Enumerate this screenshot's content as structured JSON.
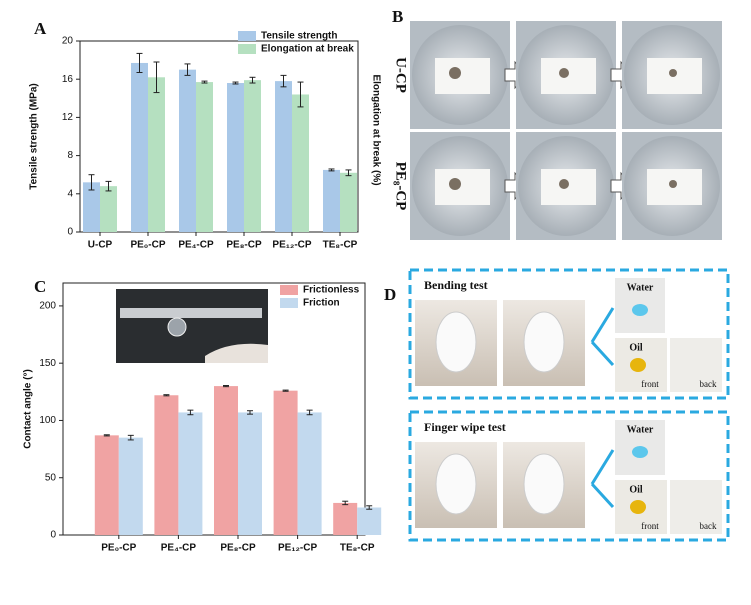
{
  "chart_data": [
    {
      "type": "bar",
      "panel_label": "A",
      "ylabel": "Tensile strength (MPa)",
      "y2label": "Elongation at break (%)",
      "categories": [
        "U-CP",
        "PE₀-CP",
        "PE₄-CP",
        "PE₈-CP",
        "PE₁₂-CP",
        "TE₈-CP"
      ],
      "series": [
        {
          "name": "Tensile strength",
          "color": "#a9c8e8",
          "values": [
            5.2,
            17.7,
            17.0,
            15.6,
            15.8,
            6.5
          ],
          "errors": [
            0.8,
            1.0,
            0.6,
            0.1,
            0.6,
            0.1
          ]
        },
        {
          "name": "Elongation at break",
          "color": "#b5e0c0",
          "values": [
            4.8,
            16.2,
            15.7,
            15.9,
            14.4,
            6.2
          ],
          "errors": [
            0.5,
            1.6,
            0.1,
            0.3,
            1.3,
            0.3
          ]
        }
      ],
      "ylim": [
        0,
        20
      ],
      "yticks": [
        0,
        4,
        8,
        12,
        16,
        20
      ],
      "legend": "upper right"
    },
    {
      "type": "bar",
      "panel_label": "C",
      "ylabel": "Contact angle (°)",
      "categories": [
        "PE₀-CP",
        "PE₄-CP",
        "PE₈-CP",
        "PE₁₂-CP",
        "TE₈-CP"
      ],
      "series": [
        {
          "name": "Frictionless",
          "color": "#f0a3a3",
          "values": [
            87,
            122,
            130,
            126,
            28
          ],
          "errors": [
            0.5,
            0.5,
            0.5,
            0.5,
            1.5
          ]
        },
        {
          "name": "Friction",
          "color": "#c2d9ee",
          "values": [
            85,
            107,
            107,
            107,
            24
          ],
          "errors": [
            2,
            2,
            1.5,
            2,
            1.5
          ]
        }
      ],
      "ylim": [
        0,
        220
      ],
      "yticks": [
        0,
        50,
        100,
        150,
        200
      ],
      "legend": "upper right"
    }
  ],
  "panel_b": {
    "label": "B",
    "rows": [
      "U-CP",
      "PE₈-CP"
    ]
  },
  "panel_d": {
    "label": "D",
    "sections": [
      {
        "title": "Bending test",
        "water": "Water",
        "oil": "Oil",
        "front": "front",
        "back": "back"
      },
      {
        "title": "Finger wipe test",
        "water": "Water",
        "oil": "Oil",
        "front": "front",
        "back": "back"
      }
    ]
  }
}
